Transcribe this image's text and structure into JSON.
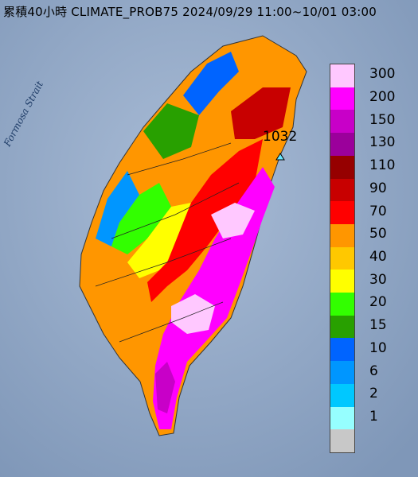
{
  "title": "累積40小時 CLIMATE_PROB75 2024/09/29 11:00~10/01 03:00",
  "map": {
    "strait_label": "Formosa Strait",
    "station": {
      "label": "1032",
      "marker": "triangle-marker-icon"
    }
  },
  "legend": {
    "items": [
      {
        "label": "300",
        "color": "#ffc8ff"
      },
      {
        "label": "200",
        "color": "#ff00ff"
      },
      {
        "label": "150",
        "color": "#c800c8"
      },
      {
        "label": "130",
        "color": "#9b009b"
      },
      {
        "label": "110",
        "color": "#960000"
      },
      {
        "label": "90",
        "color": "#c80000"
      },
      {
        "label": "70",
        "color": "#ff0000"
      },
      {
        "label": "50",
        "color": "#ff9600"
      },
      {
        "label": "40",
        "color": "#ffc800"
      },
      {
        "label": "30",
        "color": "#ffff00"
      },
      {
        "label": "20",
        "color": "#32ff00"
      },
      {
        "label": "15",
        "color": "#28a000"
      },
      {
        "label": "10",
        "color": "#0064ff"
      },
      {
        "label": "6",
        "color": "#0096ff"
      },
      {
        "label": "2",
        "color": "#00c8ff"
      },
      {
        "label": "1",
        "color": "#96ffff"
      },
      {
        "label": "",
        "color": "#c8c8c8"
      }
    ]
  }
}
